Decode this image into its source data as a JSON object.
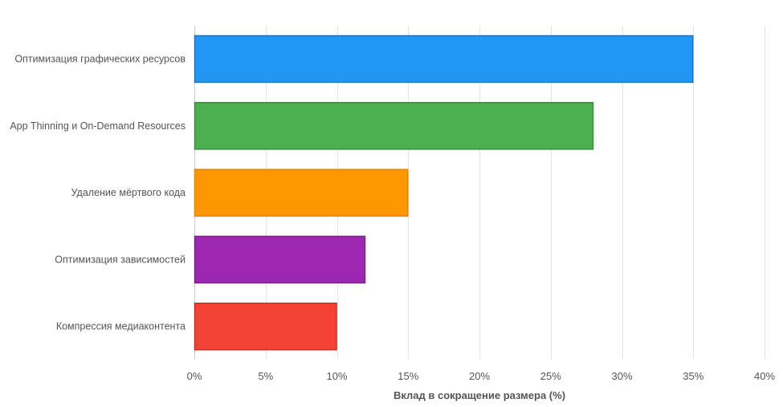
{
  "chart_data": {
    "type": "bar",
    "orientation": "horizontal",
    "categories": [
      "Оптимизация графических ресурсов",
      "App Thinning и On-Demand Resources",
      "Удаление мёртвого кода",
      "Оптимизация зависимостей",
      "Компрессия медиаконтента"
    ],
    "values": [
      35,
      28,
      15,
      12,
      10
    ],
    "colors": [
      "#2196f3",
      "#4caf50",
      "#ff9800",
      "#9c27b0",
      "#f44336"
    ],
    "border_colors": [
      "#1a76c2",
      "#3a8c3e",
      "#e08700",
      "#7b1f8c",
      "#c62f24"
    ],
    "title": "",
    "xlabel": "Вклад в сокращение размера (%)",
    "ylabel": "",
    "xlim": [
      0,
      40
    ],
    "xticks": [
      0,
      5,
      10,
      15,
      20,
      25,
      30,
      35,
      40
    ],
    "tick_suffix": "%",
    "grid": "vertical",
    "legend": "none"
  }
}
